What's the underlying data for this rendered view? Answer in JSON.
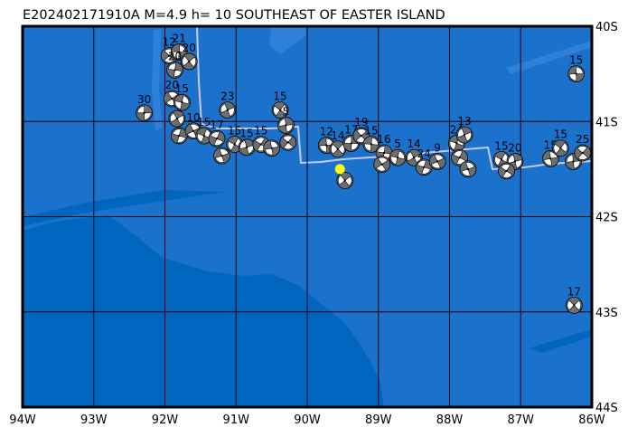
{
  "title": "E202402171910A  M=4.9  h=  10 SOUTHEAST OF EASTER ISLAND",
  "map": {
    "lon_range": [
      -94,
      -86
    ],
    "lat_range": [
      -44,
      -40
    ],
    "lon_ticks": [
      "94W",
      "93W",
      "92W",
      "91W",
      "90W",
      "89W",
      "88W",
      "87W",
      "86W"
    ],
    "lat_ticks": [
      "40S",
      "41S",
      "42S",
      "43S",
      "44S"
    ],
    "colors": {
      "ocean_shallow": "#1a72cc",
      "ocean_deep": "#0066bf",
      "ridge": "#3c8be0",
      "plate_boundary": "#c8c8f0",
      "beachball_fill": "#6e6e6e",
      "beachball_white": "#ffffff",
      "epicenter": "#ffff00"
    },
    "epicenter": {
      "lon": -89.54,
      "lat": -41.5
    },
    "events": [
      {
        "lon": -92.29,
        "lat": -40.91,
        "depth": "30"
      },
      {
        "lon": -91.94,
        "lat": -40.31,
        "depth": "12"
      },
      {
        "lon": -91.8,
        "lat": -40.27,
        "depth": "21"
      },
      {
        "lon": -91.66,
        "lat": -40.37,
        "depth": "20"
      },
      {
        "lon": -91.86,
        "lat": -40.46,
        "depth": "20"
      },
      {
        "lon": -91.9,
        "lat": -40.76,
        "depth": "20"
      },
      {
        "lon": -91.76,
        "lat": -40.8,
        "depth": "15"
      },
      {
        "lon": -91.83,
        "lat": -40.97,
        "depth": ""
      },
      {
        "lon": -91.8,
        "lat": -41.15,
        "depth": ""
      },
      {
        "lon": -91.6,
        "lat": -41.1,
        "depth": "10"
      },
      {
        "lon": -91.45,
        "lat": -41.15,
        "depth": "15"
      },
      {
        "lon": -91.12,
        "lat": -40.88,
        "depth": "23"
      },
      {
        "lon": -91.27,
        "lat": -41.18,
        "depth": "17"
      },
      {
        "lon": -91.2,
        "lat": -41.36,
        "depth": ""
      },
      {
        "lon": -91.02,
        "lat": -41.24,
        "depth": "15"
      },
      {
        "lon": -90.85,
        "lat": -41.27,
        "depth": "15"
      },
      {
        "lon": -90.65,
        "lat": -41.24,
        "depth": "15"
      },
      {
        "lon": -90.5,
        "lat": -41.28,
        "depth": ""
      },
      {
        "lon": -90.38,
        "lat": -40.88,
        "depth": "15"
      },
      {
        "lon": -90.3,
        "lat": -41.04,
        "depth": "5"
      },
      {
        "lon": -90.27,
        "lat": -41.22,
        "depth": ""
      },
      {
        "lon": -89.73,
        "lat": -41.25,
        "depth": "12"
      },
      {
        "lon": -89.57,
        "lat": -41.29,
        "depth": "14"
      },
      {
        "lon": -89.38,
        "lat": -41.23,
        "depth": "17"
      },
      {
        "lon": -89.24,
        "lat": -41.15,
        "depth": "19"
      },
      {
        "lon": -89.1,
        "lat": -41.24,
        "depth": "15"
      },
      {
        "lon": -89.47,
        "lat": -41.62,
        "depth": ""
      },
      {
        "lon": -88.92,
        "lat": -41.33,
        "depth": "16"
      },
      {
        "lon": -88.95,
        "lat": -41.45,
        "depth": ""
      },
      {
        "lon": -88.73,
        "lat": -41.38,
        "depth": "5"
      },
      {
        "lon": -88.5,
        "lat": -41.38,
        "depth": "14"
      },
      {
        "lon": -88.36,
        "lat": -41.48,
        "depth": "24"
      },
      {
        "lon": -88.17,
        "lat": -41.42,
        "depth": "9"
      },
      {
        "lon": -87.9,
        "lat": -41.23,
        "depth": "24"
      },
      {
        "lon": -87.79,
        "lat": -41.14,
        "depth": "13"
      },
      {
        "lon": -87.86,
        "lat": -41.38,
        "depth": ""
      },
      {
        "lon": -87.74,
        "lat": -41.5,
        "depth": ""
      },
      {
        "lon": -87.27,
        "lat": -41.4,
        "depth": "15"
      },
      {
        "lon": -87.08,
        "lat": -41.42,
        "depth": "20"
      },
      {
        "lon": -87.2,
        "lat": -41.52,
        "depth": ""
      },
      {
        "lon": -86.58,
        "lat": -41.39,
        "depth": "15"
      },
      {
        "lon": -86.44,
        "lat": -41.28,
        "depth": "15"
      },
      {
        "lon": -86.26,
        "lat": -41.42,
        "depth": ""
      },
      {
        "lon": -86.13,
        "lat": -41.33,
        "depth": "25"
      },
      {
        "lon": -86.22,
        "lat": -40.5,
        "depth": "15"
      },
      {
        "lon": -86.25,
        "lat": -42.93,
        "depth": "17"
      }
    ]
  }
}
